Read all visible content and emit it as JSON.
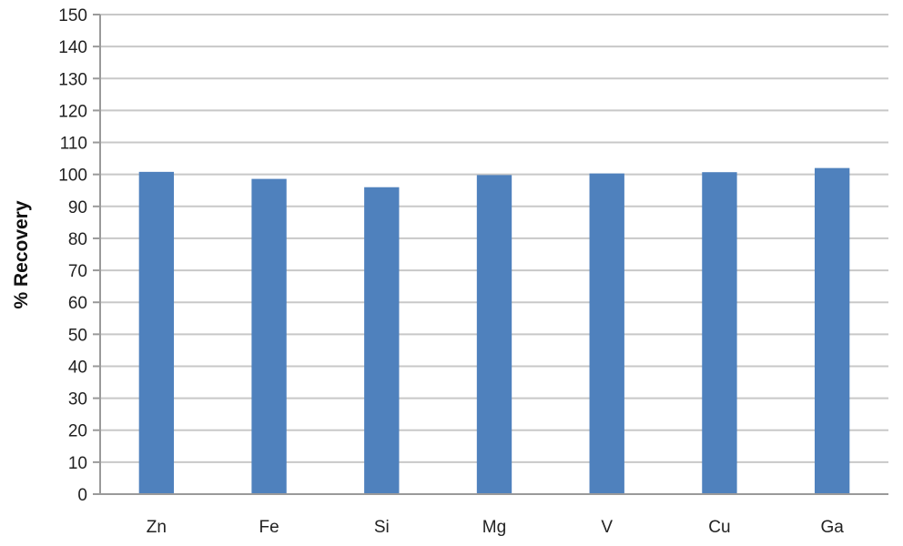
{
  "chart_data": {
    "type": "bar",
    "title": "",
    "xlabel": "",
    "ylabel": "% Recovery",
    "ylim": [
      0,
      150
    ],
    "yticks": [
      0,
      10,
      20,
      30,
      40,
      50,
      60,
      70,
      80,
      90,
      100,
      110,
      120,
      130,
      140,
      150
    ],
    "categories": [
      "Zn",
      "Fe",
      "Si",
      "Mg",
      "V",
      "Cu",
      "Ga"
    ],
    "values": [
      100.8,
      98.6,
      96.0,
      99.8,
      100.3,
      100.7,
      102.0
    ],
    "grid": true,
    "legend": "none",
    "bar_color": "#4f81bd"
  }
}
